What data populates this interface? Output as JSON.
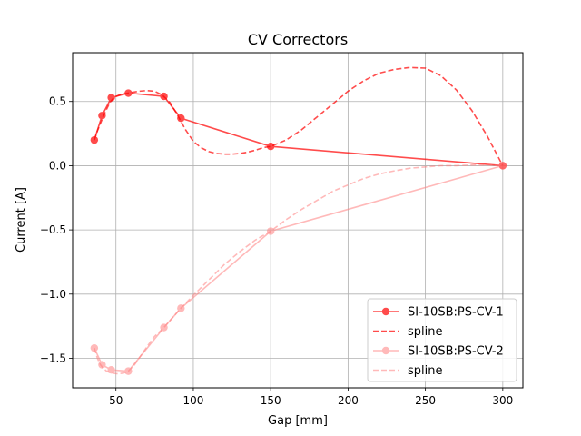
{
  "chart_data": {
    "type": "line",
    "title": "CV Correctors",
    "xlabel": "Gap [mm]",
    "ylabel": "Current [A]",
    "xlim": [
      22,
      313
    ],
    "ylim": [
      -1.73,
      0.88
    ],
    "xticks": [
      50,
      100,
      150,
      200,
      250,
      300
    ],
    "xtick_labels": [
      "50",
      "100",
      "150",
      "200",
      "250",
      "300"
    ],
    "yticks": [
      0.5,
      0.0,
      -0.5,
      -1.0,
      -1.5
    ],
    "ytick_labels": [
      "0.5",
      "0.0",
      "−0.5",
      "−1.0",
      "−1.5"
    ],
    "grid": true,
    "legend_position": "lower-right",
    "series": [
      {
        "name": "SI-10SB:PS-CV-1",
        "style": "solid-markers",
        "color": "#ff0000",
        "opacity": 0.7,
        "x": [
          36,
          41,
          47,
          58,
          81,
          92,
          150,
          300
        ],
        "y": [
          0.2,
          0.39,
          0.53,
          0.565,
          0.54,
          0.37,
          0.15,
          0.0
        ]
      },
      {
        "name": "spline",
        "style": "dashed",
        "color": "#ff0000",
        "opacity": 0.7,
        "x": [
          36,
          38,
          40,
          42,
          44,
          46,
          48,
          50,
          52,
          54,
          56,
          58,
          60,
          65,
          70,
          75,
          80,
          85,
          90,
          95,
          100,
          105,
          110,
          115,
          120,
          125,
          130,
          135,
          140,
          145,
          150,
          160,
          170,
          180,
          190,
          200,
          210,
          220,
          230,
          240,
          250,
          260,
          270,
          280,
          290,
          300
        ],
        "y": [
          0.2,
          0.27,
          0.33,
          0.39,
          0.44,
          0.49,
          0.52,
          0.54,
          0.55,
          0.555,
          0.56,
          0.565,
          0.57,
          0.58,
          0.585,
          0.58,
          0.55,
          0.49,
          0.39,
          0.28,
          0.19,
          0.14,
          0.11,
          0.095,
          0.09,
          0.09,
          0.095,
          0.105,
          0.12,
          0.14,
          0.15,
          0.2,
          0.28,
          0.38,
          0.48,
          0.58,
          0.66,
          0.72,
          0.75,
          0.765,
          0.76,
          0.7,
          0.59,
          0.43,
          0.23,
          0.0
        ]
      },
      {
        "name": "SI-10SB:PS-CV-2",
        "style": "solid-markers",
        "color": "#ff8080",
        "opacity": 0.55,
        "x": [
          36,
          41,
          47,
          58,
          81,
          92,
          150,
          300
        ],
        "y": [
          -1.42,
          -1.55,
          -1.59,
          -1.6,
          -1.26,
          -1.11,
          -0.51,
          0.0
        ]
      },
      {
        "name": "spline",
        "style": "dashed",
        "color": "#ff8080",
        "opacity": 0.55,
        "x": [
          36,
          38,
          40,
          42,
          44,
          46,
          48,
          50,
          52,
          55,
          58,
          62,
          66,
          70,
          75,
          81,
          86,
          92,
          100,
          110,
          120,
          130,
          140,
          150,
          160,
          170,
          180,
          190,
          200,
          210,
          220,
          230,
          240,
          250,
          260,
          270,
          280,
          290,
          300
        ],
        "y": [
          -1.42,
          -1.5,
          -1.55,
          -1.58,
          -1.6,
          -1.61,
          -1.615,
          -1.62,
          -1.62,
          -1.615,
          -1.6,
          -1.55,
          -1.48,
          -1.41,
          -1.33,
          -1.26,
          -1.19,
          -1.11,
          -1.01,
          -0.89,
          -0.77,
          -0.67,
          -0.58,
          -0.51,
          -0.42,
          -0.34,
          -0.27,
          -0.2,
          -0.15,
          -0.1,
          -0.065,
          -0.04,
          -0.02,
          -0.01,
          0.0,
          0.0,
          0.005,
          0.005,
          0.0
        ]
      }
    ]
  }
}
